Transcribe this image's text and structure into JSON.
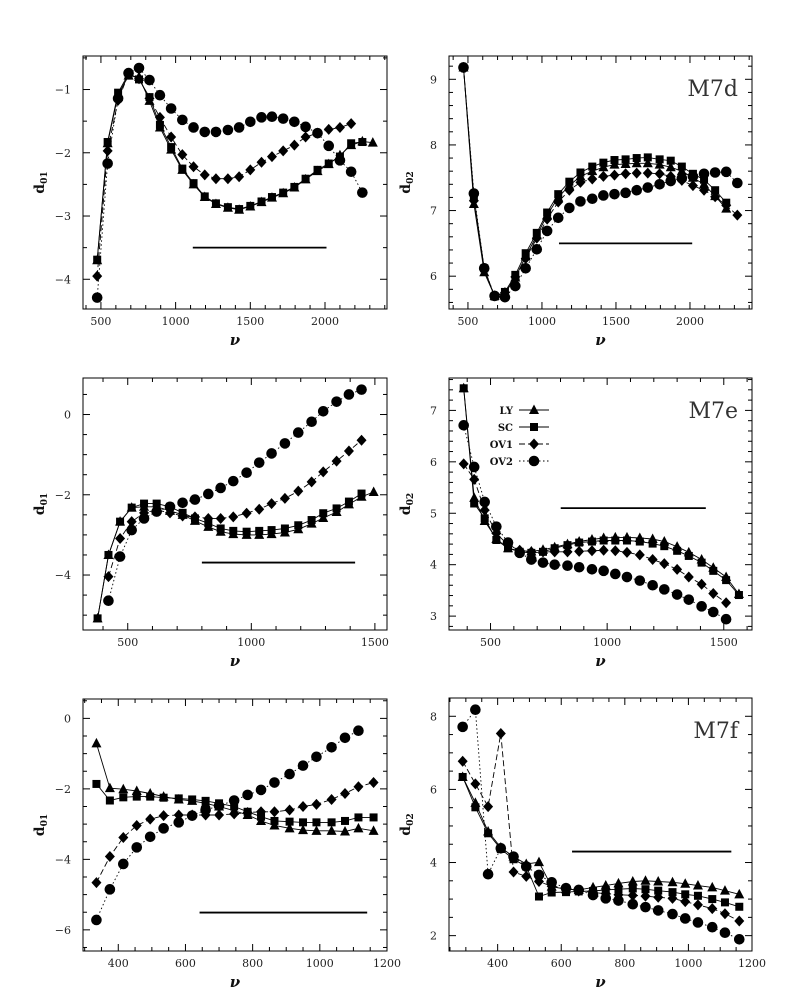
{
  "chart_data": [
    {
      "type": "line",
      "title": "",
      "xlabel": "ν",
      "ylabel": "d01",
      "xlim": [
        380,
        2415
      ],
      "ylim": [
        -4.47,
        -0.47
      ],
      "xticks": [
        500,
        1000,
        1500,
        2000
      ],
      "yticks": [
        -1,
        -2,
        -3,
        -4
      ],
      "xminor": 100,
      "yminor": 0.5,
      "reference_segment": {
        "x": [
          1115,
          2010
        ],
        "y": -3.5
      },
      "x": [
        475,
        545,
        615,
        685,
        755,
        825,
        895,
        970,
        1045,
        1120,
        1195,
        1270,
        1350,
        1425,
        1500,
        1575,
        1645,
        1720,
        1795,
        1870,
        1950,
        2025,
        2100,
        2175,
        2250,
        2320
      ],
      "series": [
        {
          "name": "LY",
          "marker": "triangle",
          "line": "solid",
          "y": [
            -3.7,
            -1.85,
            -1.08,
            -0.78,
            -0.8,
            -1.18,
            -1.6,
            -1.95,
            -2.27,
            -2.5,
            -2.7,
            -2.81,
            -2.87,
            -2.9,
            -2.85,
            -2.78,
            -2.71,
            -2.64,
            -2.55,
            -2.42,
            -2.29,
            -2.18,
            -2.04,
            -1.88,
            -1.82,
            -1.84
          ]
        },
        {
          "name": "SC",
          "marker": "square",
          "line": "solid",
          "y": [
            -3.69,
            -1.83,
            -1.05,
            -0.75,
            -0.84,
            -1.12,
            -1.56,
            -1.91,
            -2.25,
            -2.48,
            -2.69,
            -2.8,
            -2.86,
            -2.89,
            -2.84,
            -2.77,
            -2.7,
            -2.63,
            -2.54,
            -2.41,
            -2.27,
            -2.17,
            -2.06,
            -1.85,
            -1.83,
            null
          ]
        },
        {
          "name": "OV1",
          "marker": "diamond",
          "line": "dashed",
          "y": [
            -3.95,
            -1.97,
            -1.17,
            -0.75,
            -0.83,
            -1.14,
            -1.44,
            -1.75,
            -2.03,
            -2.22,
            -2.35,
            -2.41,
            -2.41,
            -2.38,
            -2.27,
            -2.15,
            -2.06,
            -1.97,
            -1.88,
            -1.75,
            -1.69,
            -1.63,
            -1.6,
            -1.54,
            null,
            null
          ]
        },
        {
          "name": "OV2",
          "marker": "circle",
          "line": "dotted",
          "y": [
            -4.29,
            -2.17,
            -1.14,
            -0.74,
            -0.66,
            -0.85,
            -1.09,
            -1.3,
            -1.48,
            -1.6,
            -1.67,
            -1.67,
            -1.64,
            -1.6,
            -1.51,
            -1.44,
            -1.43,
            -1.46,
            -1.51,
            -1.59,
            -1.69,
            -1.89,
            -2.12,
            -2.3,
            -2.63,
            null
          ]
        }
      ]
    },
    {
      "type": "line",
      "title": "M7d",
      "xlabel": "ν",
      "ylabel": "d02",
      "xlim": [
        372,
        2419
      ],
      "ylim": [
        5.5,
        9.355
      ],
      "xticks": [
        500,
        1000,
        1500,
        2000
      ],
      "yticks": [
        6,
        7,
        8,
        9
      ],
      "xminor": 100,
      "yminor": 0.2,
      "reference_segment": {
        "x": [
          1115,
          2015
        ],
        "y": 6.5
      },
      "x": [
        470,
        540,
        610,
        680,
        750,
        820,
        890,
        965,
        1035,
        1110,
        1185,
        1260,
        1340,
        1415,
        1490,
        1565,
        1640,
        1715,
        1795,
        1870,
        1945,
        2020,
        2095,
        2170,
        2245,
        2320
      ],
      "series": [
        {
          "name": "LY",
          "marker": "triangle",
          "line": "solid",
          "y": [
            9.18,
            7.1,
            6.06,
            5.7,
            5.74,
            5.98,
            6.3,
            6.62,
            6.93,
            7.2,
            7.38,
            7.52,
            7.6,
            7.66,
            7.7,
            7.71,
            7.72,
            7.72,
            7.7,
            7.66,
            7.6,
            7.5,
            7.4,
            7.22,
            7.03,
            null
          ]
        },
        {
          "name": "SC",
          "marker": "square",
          "line": "solid",
          "y": [
            9.18,
            7.21,
            6.12,
            5.69,
            5.76,
            6.02,
            6.35,
            6.66,
            6.97,
            7.25,
            7.44,
            7.58,
            7.67,
            7.73,
            7.77,
            7.78,
            7.8,
            7.81,
            7.78,
            7.76,
            7.67,
            7.56,
            7.47,
            7.31,
            7.12,
            null
          ]
        },
        {
          "name": "OV1",
          "marker": "diamond",
          "line": "dashed",
          "y": [
            9.18,
            7.15,
            6.1,
            5.7,
            5.75,
            5.99,
            6.27,
            6.58,
            6.87,
            7.13,
            7.31,
            7.43,
            7.48,
            7.52,
            7.54,
            7.56,
            7.57,
            7.57,
            7.56,
            7.52,
            7.46,
            7.38,
            7.31,
            7.21,
            7.08,
            6.93
          ]
        },
        {
          "name": "OV2",
          "marker": "circle",
          "line": "dotted",
          "y": [
            9.18,
            7.26,
            6.12,
            5.7,
            5.68,
            5.85,
            6.12,
            6.41,
            6.69,
            6.89,
            7.04,
            7.14,
            7.18,
            7.23,
            7.25,
            7.27,
            7.31,
            7.35,
            7.4,
            7.45,
            7.49,
            7.52,
            7.56,
            7.58,
            7.59,
            7.42
          ]
        }
      ]
    },
    {
      "type": "line",
      "title": "",
      "xlabel": "ν",
      "ylabel": "d01",
      "xlim": [
        319,
        1549
      ],
      "ylim": [
        -5.37,
        0.91
      ],
      "xticks": [
        500,
        1000,
        1500
      ],
      "yticks": [
        0,
        -2,
        -4
      ],
      "xminor": 100,
      "yminor": 0.5,
      "reference_segment": {
        "x": [
          800,
          1420
        ],
        "y": -3.69
      },
      "x": [
        378,
        422,
        469,
        516,
        566,
        617,
        671,
        722,
        772,
        826,
        876,
        927,
        981,
        1032,
        1082,
        1136,
        1190,
        1244,
        1291,
        1345,
        1395,
        1446,
        1495
      ],
      "series": [
        {
          "name": "LY",
          "marker": "triangle",
          "line": "solid",
          "y": [
            -5.08,
            -3.5,
            -2.67,
            -2.32,
            -2.3,
            -2.3,
            -2.4,
            -2.5,
            -2.65,
            -2.8,
            -2.92,
            -2.98,
            -3.0,
            -3.0,
            -2.98,
            -2.94,
            -2.86,
            -2.72,
            -2.58,
            -2.43,
            -2.24,
            -2.05,
            -1.93
          ]
        },
        {
          "name": "SC",
          "marker": "square",
          "line": "solid",
          "y": [
            -5.08,
            -3.5,
            -2.67,
            -2.32,
            -2.22,
            -2.22,
            -2.3,
            -2.45,
            -2.59,
            -2.71,
            -2.84,
            -2.9,
            -2.92,
            -2.9,
            -2.88,
            -2.84,
            -2.76,
            -2.63,
            -2.46,
            -2.34,
            -2.17,
            -1.97,
            null
          ]
        },
        {
          "name": "OV1",
          "marker": "diamond",
          "line": "dashed",
          "y": [
            null,
            -4.04,
            -3.09,
            -2.67,
            -2.45,
            -2.38,
            -2.45,
            -2.53,
            -2.55,
            -2.59,
            -2.59,
            -2.55,
            -2.46,
            -2.36,
            -2.22,
            -2.09,
            -1.91,
            -1.68,
            -1.43,
            -1.16,
            -0.91,
            -0.64,
            null
          ]
        },
        {
          "name": "OV2",
          "marker": "circle",
          "line": "dotted",
          "y": [
            null,
            -4.64,
            -3.54,
            -2.88,
            -2.59,
            -2.42,
            -2.3,
            -2.2,
            -2.12,
            -1.98,
            -1.83,
            -1.66,
            -1.45,
            -1.2,
            -0.97,
            -0.72,
            -0.45,
            -0.18,
            0.08,
            0.32,
            0.5,
            0.62,
            null
          ]
        }
      ]
    },
    {
      "type": "line",
      "title": "M7e",
      "xlabel": "ν",
      "ylabel": "d02",
      "xlim": [
        322,
        1621
      ],
      "ylim": [
        2.73,
        7.63
      ],
      "xticks": [
        500,
        1000,
        1500
      ],
      "yticks": [
        3,
        4,
        5,
        6,
        7
      ],
      "xminor": 100,
      "yminor": 0.2,
      "legend": {
        "placement": "upper-left",
        "entries": [
          "LY",
          "SC",
          "OV1",
          "OV2"
        ]
      },
      "reference_segment": {
        "x": [
          801,
          1423
        ],
        "y": 5.1
      },
      "x": [
        385,
        430,
        475,
        525,
        575,
        625,
        675,
        725,
        775,
        830,
        880,
        935,
        985,
        1035,
        1085,
        1140,
        1195,
        1245,
        1300,
        1350,
        1405,
        1455,
        1510,
        1565
      ],
      "series": [
        {
          "name": "LY",
          "marker": "triangle",
          "line": "solid",
          "y": [
            7.43,
            5.3,
            4.85,
            4.5,
            4.32,
            4.27,
            4.26,
            4.29,
            4.34,
            4.4,
            4.45,
            4.49,
            4.52,
            4.53,
            4.53,
            4.52,
            4.5,
            4.45,
            4.35,
            4.24,
            4.1,
            3.94,
            3.76,
            3.43
          ]
        },
        {
          "name": "SC",
          "marker": "square",
          "line": "solid",
          "y": [
            7.43,
            5.19,
            4.9,
            4.48,
            4.32,
            4.25,
            4.23,
            4.25,
            4.32,
            4.38,
            4.43,
            4.45,
            4.47,
            4.47,
            4.47,
            4.45,
            4.41,
            4.36,
            4.27,
            4.17,
            4.04,
            3.88,
            3.7,
            3.41
          ]
        },
        {
          "name": "OV1",
          "marker": "diamond",
          "line": "dashed",
          "y": [
            5.96,
            5.66,
            5.06,
            4.61,
            4.38,
            4.28,
            4.25,
            4.25,
            4.25,
            4.25,
            4.26,
            4.27,
            4.28,
            4.27,
            4.24,
            4.19,
            4.1,
            4.02,
            3.91,
            3.76,
            3.62,
            3.44,
            3.26,
            null
          ]
        },
        {
          "name": "OV2",
          "marker": "circle",
          "line": "dotted",
          "y": [
            6.71,
            5.9,
            5.22,
            4.74,
            4.43,
            4.23,
            4.1,
            4.04,
            4.0,
            3.98,
            3.95,
            3.91,
            3.88,
            3.82,
            3.76,
            3.69,
            3.6,
            3.52,
            3.42,
            3.32,
            3.19,
            3.08,
            2.94,
            null
          ]
        }
      ]
    },
    {
      "type": "line",
      "title": "",
      "xlabel": "ν",
      "ylabel": "d01",
      "xlim": [
        295,
        1200
      ],
      "ylim": [
        -6.6,
        0.55
      ],
      "xticks": [
        400,
        600,
        800,
        1000,
        1200
      ],
      "yticks": [
        0,
        -2,
        -4,
        -6
      ],
      "xminor": 50,
      "yminor": 0.5,
      "reference_segment": {
        "x": [
          642,
          1141
        ],
        "y": -5.51
      },
      "x": [
        335,
        375,
        415,
        455,
        495,
        535,
        580,
        620,
        660,
        700,
        745,
        785,
        825,
        865,
        910,
        950,
        990,
        1035,
        1075,
        1115,
        1160
      ],
      "series": [
        {
          "name": "LY",
          "marker": "triangle",
          "line": "solid",
          "y": [
            -0.71,
            -1.98,
            -2.01,
            -2.06,
            -2.13,
            -2.22,
            -2.3,
            -2.34,
            -2.41,
            -2.5,
            -2.62,
            -2.74,
            -2.91,
            -3.04,
            -3.12,
            -3.17,
            -3.19,
            -3.19,
            -3.21,
            -3.12,
            -3.19
          ]
        },
        {
          "name": "SC",
          "marker": "square",
          "line": "solid",
          "y": [
            -1.86,
            -2.33,
            -2.24,
            -2.22,
            -2.22,
            -2.25,
            -2.27,
            -2.3,
            -2.34,
            -2.41,
            -2.5,
            -2.65,
            -2.79,
            -2.91,
            -2.93,
            -2.95,
            -2.95,
            -2.95,
            -2.91,
            -2.81,
            -2.81
          ]
        },
        {
          "name": "OV1",
          "marker": "diamond",
          "line": "dashed",
          "y": [
            -4.66,
            -3.92,
            -3.38,
            -3.04,
            -2.86,
            -2.76,
            -2.74,
            -2.74,
            -2.74,
            -2.74,
            -2.71,
            -2.67,
            -2.65,
            -2.65,
            -2.6,
            -2.5,
            -2.44,
            -2.3,
            -2.13,
            -1.94,
            -1.82
          ]
        },
        {
          "name": "OV2",
          "marker": "circle",
          "line": "dotted",
          "y": [
            -5.72,
            -4.85,
            -4.13,
            -3.66,
            -3.36,
            -3.12,
            -2.95,
            -2.76,
            -2.6,
            -2.48,
            -2.33,
            -2.17,
            -2.03,
            -1.82,
            -1.58,
            -1.34,
            -1.09,
            -0.82,
            -0.55,
            -0.35,
            null
          ]
        }
      ]
    },
    {
      "type": "line",
      "title": "M7f",
      "xlabel": "ν",
      "ylabel": "d02",
      "xlim": [
        247,
        1200
      ],
      "ylim": [
        1.58,
        8.5
      ],
      "xticks": [
        400,
        600,
        800,
        1000,
        1200
      ],
      "yticks": [
        2,
        4,
        6,
        8
      ],
      "xminor": 50,
      "yminor": 0.5,
      "reference_segment": {
        "x": [
          634,
          1135
        ],
        "y": 4.3
      },
      "x": [
        290,
        330,
        370,
        410,
        450,
        490,
        530,
        570,
        615,
        655,
        700,
        740,
        780,
        825,
        865,
        905,
        950,
        990,
        1030,
        1075,
        1115,
        1160
      ],
      "series": [
        {
          "name": "LY",
          "marker": "triangle",
          "line": "solid",
          "y": [
            6.34,
            5.63,
            4.85,
            4.41,
            4.16,
            3.96,
            4.01,
            3.34,
            3.27,
            3.25,
            3.32,
            3.37,
            3.43,
            3.48,
            3.5,
            3.48,
            3.46,
            3.42,
            3.37,
            3.32,
            3.23,
            3.13
          ]
        },
        {
          "name": "SC",
          "marker": "square",
          "line": "solid",
          "y": [
            6.34,
            5.51,
            4.8,
            4.37,
            4.09,
            3.89,
            3.07,
            3.18,
            3.19,
            3.21,
            3.22,
            3.25,
            3.27,
            3.29,
            3.27,
            3.23,
            3.19,
            3.13,
            3.09,
            3.0,
            2.91,
            2.79
          ]
        },
        {
          "name": "OV1",
          "marker": "diamond",
          "line": "dashed",
          "y": [
            6.77,
            6.15,
            5.53,
            7.53,
            3.74,
            3.62,
            3.48,
            3.35,
            3.3,
            3.22,
            3.18,
            3.15,
            3.12,
            3.1,
            3.08,
            3.05,
            3.02,
            2.93,
            2.84,
            2.74,
            2.6,
            2.4
          ]
        },
        {
          "name": "OV2",
          "marker": "circle",
          "line": "dotted",
          "y": [
            7.71,
            8.18,
            3.68,
            4.39,
            4.16,
            3.89,
            3.66,
            3.46,
            3.3,
            3.25,
            3.11,
            3.02,
            2.96,
            2.86,
            2.78,
            2.69,
            2.59,
            2.47,
            2.36,
            2.23,
            2.08,
            1.9
          ]
        }
      ]
    }
  ]
}
